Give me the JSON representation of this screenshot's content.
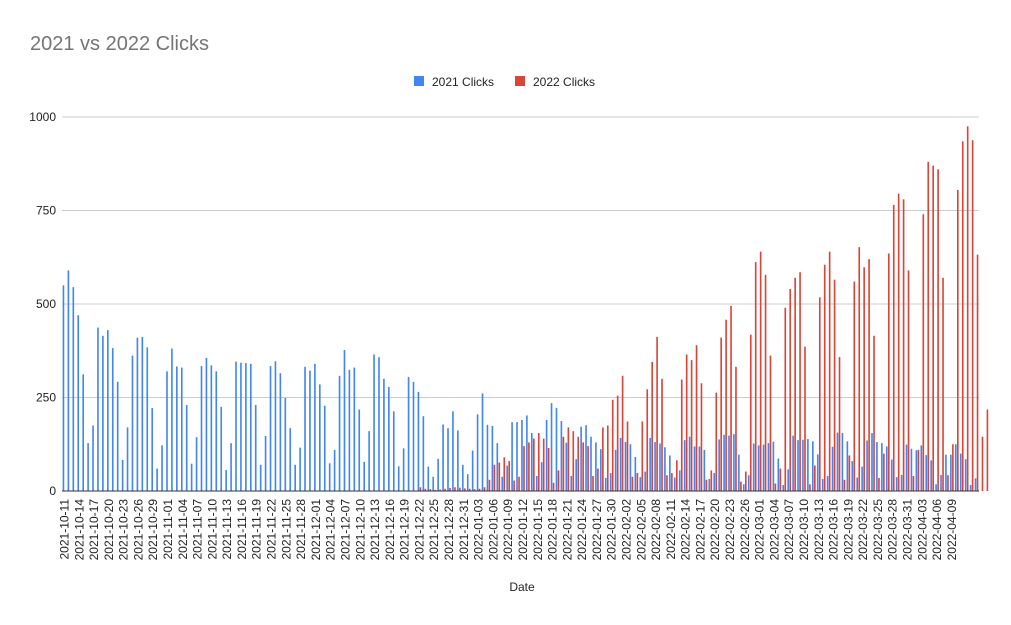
{
  "chart_data": {
    "type": "bar",
    "title": "2021 vs 2022 Clicks",
    "xlabel": "Date",
    "ylabel": "",
    "ylim": [
      0,
      1000
    ],
    "yticks": [
      0,
      250,
      500,
      750,
      1000
    ],
    "grid": true,
    "legend_position": "top",
    "colors": {
      "2021 Clicks": "#4285f4",
      "2022 Clicks": "#db4437"
    },
    "x_tick_labels": [
      "2021-10-11",
      "2021-10-14",
      "2021-10-17",
      "2021-10-20",
      "2021-10-23",
      "2021-10-26",
      "2021-10-29",
      "2021-11-01",
      "2021-11-04",
      "2021-11-07",
      "2021-11-10",
      "2021-11-13",
      "2021-11-16",
      "2021-11-19",
      "2021-11-22",
      "2021-11-25",
      "2021-11-28",
      "2021-12-01",
      "2021-12-04",
      "2021-12-07",
      "2021-12-10",
      "2021-12-13",
      "2021-12-16",
      "2021-12-19",
      "2021-12-22",
      "2021-12-25",
      "2021-12-28",
      "2021-12-31",
      "2022-01-03",
      "2022-01-06",
      "2022-01-09",
      "2022-01-12",
      "2022-01-15",
      "2022-01-18",
      "2022-01-21",
      "2022-01-24",
      "2022-01-27",
      "2022-01-30",
      "2022-02-02",
      "2022-02-05",
      "2022-02-08",
      "2022-02-11",
      "2022-02-14",
      "2022-02-17",
      "2022-02-20",
      "2022-02-23",
      "2022-02-26",
      "2022-03-01",
      "2022-03-04",
      "2022-03-07",
      "2022-03-10",
      "2022-03-13",
      "2022-03-16",
      "2022-03-19",
      "2022-03-22",
      "2022-03-25",
      "2022-03-28",
      "2022-03-31",
      "2022-04-03",
      "2022-04-06",
      "2022-04-09"
    ],
    "series": [
      {
        "name": "2021 Clicks",
        "values": [
          550,
          590,
          545,
          470,
          312,
          128,
          175,
          437,
          415,
          430,
          382,
          292,
          83,
          170,
          362,
          410,
          412,
          384,
          222,
          60,
          122,
          320,
          381,
          333,
          330,
          230,
          73,
          144,
          334,
          356,
          336,
          320,
          225,
          56,
          128,
          346,
          343,
          342,
          340,
          230,
          70,
          147,
          334,
          347,
          315,
          249,
          168,
          70,
          116,
          332,
          322,
          340,
          285,
          228,
          74,
          110,
          308,
          377,
          324,
          330,
          218,
          78,
          160,
          365,
          358,
          300,
          278,
          213,
          66,
          114,
          305,
          292,
          265,
          200,
          65,
          38,
          86,
          178,
          168,
          213,
          162,
          70,
          45,
          108,
          205,
          261,
          177,
          174,
          128,
          38,
          68,
          184,
          184,
          190,
          202,
          155,
          40,
          77,
          190,
          235,
          222,
          187,
          129,
          40,
          85,
          172,
          176,
          145,
          130,
          112,
          35,
          48,
          110,
          142,
          131,
          125,
          91,
          37,
          52,
          142,
          131,
          127,
          117,
          95,
          36,
          55,
          136,
          145,
          119,
          119,
          110,
          32,
          48,
          138,
          150,
          148,
          152,
          97,
          18,
          42,
          127,
          122,
          124,
          128,
          132,
          87,
          16,
          58,
          148,
          136,
          137,
          139,
          133,
          98,
          32,
          40,
          118,
          156,
          155,
          133,
          80,
          36,
          65,
          135,
          155,
          131,
          128,
          119,
          84,
          37,
          43,
          124,
          113,
          109,
          122,
          96,
          82,
          18,
          43,
          97,
          97,
          125,
          100,
          85,
          16,
          34
        ]
      },
      {
        "name": "2022 Clicks",
        "values": [
          0,
          0,
          0,
          0,
          0,
          0,
          0,
          0,
          0,
          0,
          0,
          0,
          0,
          0,
          0,
          0,
          0,
          0,
          0,
          0,
          0,
          0,
          0,
          0,
          0,
          0,
          0,
          0,
          0,
          0,
          0,
          0,
          0,
          0,
          0,
          0,
          0,
          0,
          0,
          0,
          0,
          0,
          0,
          0,
          0,
          0,
          0,
          0,
          0,
          0,
          0,
          0,
          0,
          0,
          0,
          0,
          0,
          0,
          0,
          0,
          0,
          0,
          0,
          0,
          0,
          0,
          0,
          0,
          0,
          0,
          0,
          0,
          10,
          6,
          5,
          3,
          4,
          6,
          8,
          10,
          9,
          7,
          6,
          5,
          6,
          10,
          30,
          70,
          76,
          90,
          80,
          28,
          38,
          120,
          130,
          140,
          155,
          140,
          115,
          22,
          55,
          145,
          170,
          160,
          145,
          130,
          120,
          40,
          60,
          170,
          175,
          244,
          255,
          308,
          186,
          38,
          48,
          186,
          272,
          345,
          412,
          300,
          42,
          48,
          82,
          298,
          365,
          350,
          390,
          288,
          30,
          55,
          263,
          410,
          458,
          495,
          332,
          25,
          52,
          418,
          612,
          640,
          578,
          362,
          20,
          60,
          490,
          540,
          570,
          585,
          386,
          18,
          68,
          518,
          605,
          640,
          565,
          358,
          30,
          95,
          560,
          652,
          598,
          620,
          415,
          35,
          100,
          635,
          765,
          795,
          780,
          590,
          40,
          110,
          740,
          880,
          870,
          860,
          570,
          42,
          125,
          805,
          935,
          975,
          938,
          632,
          145,
          218
        ]
      }
    ]
  }
}
